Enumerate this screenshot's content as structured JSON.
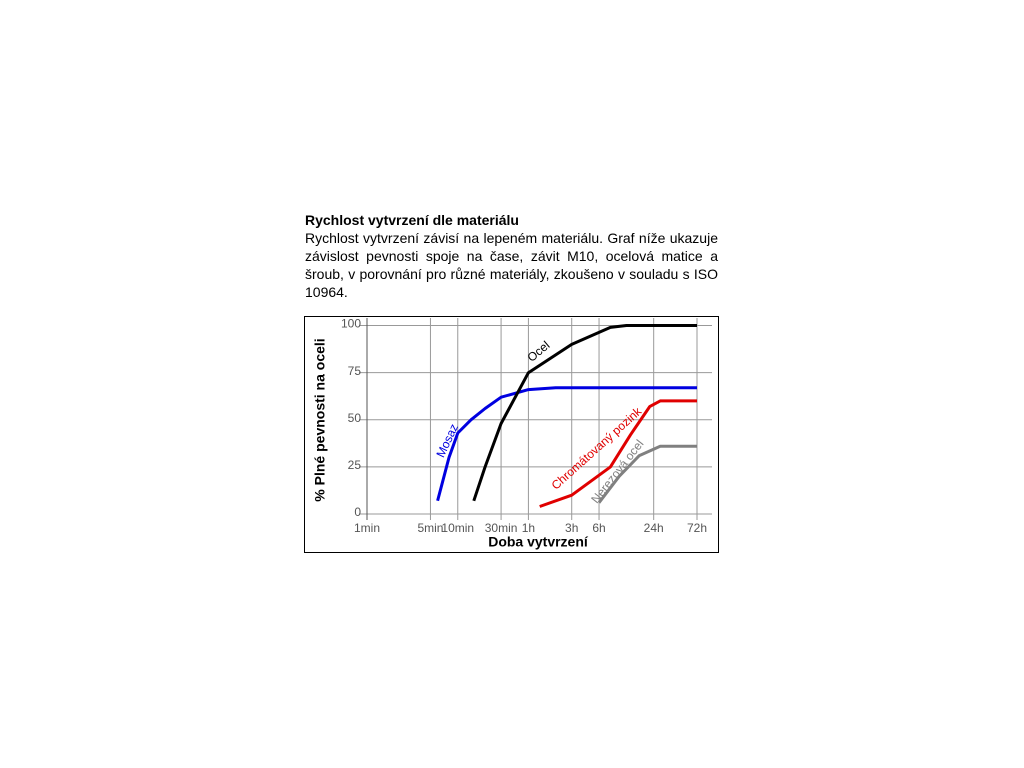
{
  "document": {
    "heading": "Rychlost vytvrzení dle materiálu",
    "paragraph": "Rychlost vytvrzení závisí na lepeném materiálu. Graf níže ukazuje závislost pevnosti spoje na čase, závit M10, ocelová matice a šroub, v porovnání pro různé materiály, zkoušeno v souladu s ISO 10964."
  },
  "chart_data": {
    "type": "line",
    "x_label": "Doba vytvrzení",
    "y_label": "% Plné pevnosti na oceli",
    "x_log": true,
    "grid": true,
    "xlim": [
      1,
      4320
    ],
    "ylim": [
      0,
      104
    ],
    "xticks": [
      {
        "value": 1,
        "label": "1min"
      },
      {
        "value": 5,
        "label": "5min"
      },
      {
        "value": 10,
        "label": "10min"
      },
      {
        "value": 30,
        "label": "30min"
      },
      {
        "value": 60,
        "label": "1h"
      },
      {
        "value": 180,
        "label": "3h"
      },
      {
        "value": 360,
        "label": "6h"
      },
      {
        "value": 1440,
        "label": "24h"
      },
      {
        "value": 4320,
        "label": "72h"
      }
    ],
    "yticks": [
      0,
      25,
      50,
      75,
      100
    ],
    "series": [
      {
        "name": "Mosaz",
        "color": "#0000e0",
        "x": [
          6,
          8,
          10,
          14,
          20,
          30,
          60,
          120,
          4320
        ],
        "values": [
          7,
          30,
          43,
          50,
          56,
          62,
          66,
          67,
          67
        ]
      },
      {
        "name": "Ocel",
        "color": "#000000",
        "x": [
          15,
          20,
          30,
          60,
          180,
          480,
          720,
          4320
        ],
        "values": [
          7,
          25,
          48,
          75,
          90,
          99,
          100,
          100
        ]
      },
      {
        "name": "Chromátovaný pozink",
        "color": "#e00000",
        "x": [
          80,
          180,
          480,
          800,
          1300,
          1700,
          4320
        ],
        "values": [
          4,
          10,
          25,
          42,
          57,
          60,
          60
        ]
      },
      {
        "name": "Nerezová ocel",
        "color": "#808080",
        "x": [
          360,
          600,
          1000,
          1700,
          4320
        ],
        "values": [
          6,
          20,
          31,
          36,
          36
        ]
      }
    ]
  }
}
